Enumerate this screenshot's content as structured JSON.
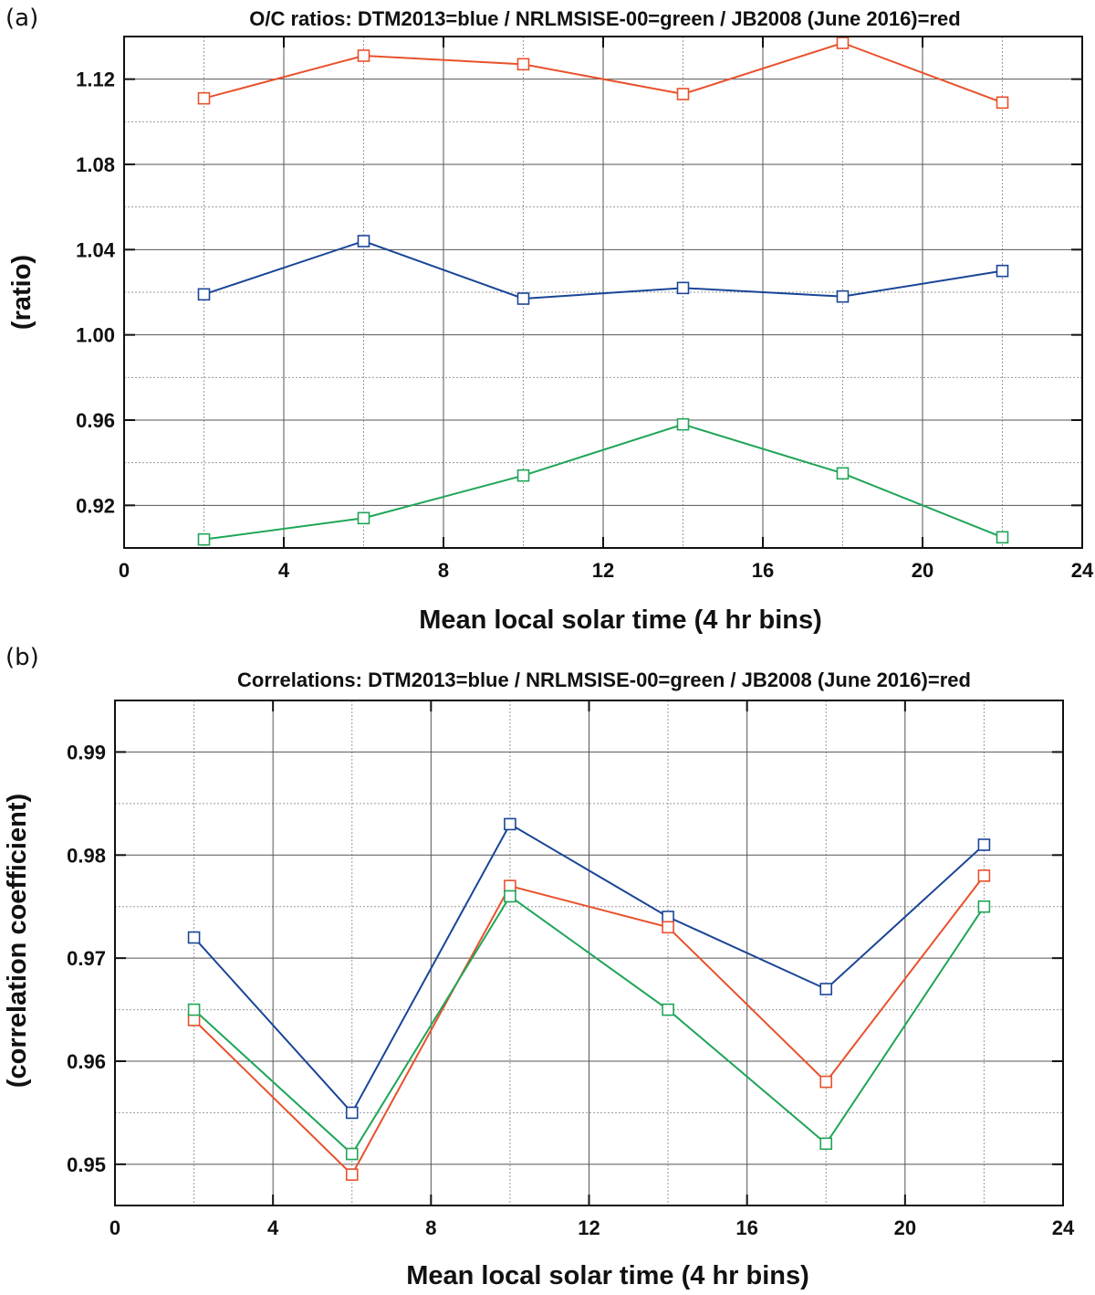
{
  "chart_data": [
    {
      "type": "line",
      "panel": "(a)",
      "title": "O/C ratios: DTM2013=blue / NRLMSISE-00=green / JB2008 (June 2016)=red",
      "xlabel": "Mean local solar time (4 hr bins)",
      "ylabel": "(ratio)",
      "xlim": [
        0,
        24
      ],
      "ylim": [
        0.9,
        1.14
      ],
      "xticks": [
        "0",
        "4",
        "8",
        "12",
        "16",
        "20",
        "24"
      ],
      "yticks": [
        "0.92",
        "0.96",
        "1.00",
        "1.04",
        "1.08",
        "1.12"
      ],
      "grid": true,
      "x": [
        2,
        6,
        10,
        14,
        18,
        22
      ],
      "series": [
        {
          "key": "red",
          "color": "#e8512c",
          "values": [
            1.111,
            1.131,
            1.127,
            1.113,
            1.137,
            1.109
          ]
        },
        {
          "key": "blue",
          "color": "#1a4597",
          "values": [
            1.019,
            1.044,
            1.017,
            1.022,
            1.018,
            1.03
          ]
        },
        {
          "key": "green",
          "color": "#1fa557",
          "values": [
            0.904,
            0.914,
            0.934,
            0.958,
            0.935,
            0.905
          ]
        }
      ]
    },
    {
      "type": "line",
      "panel": "(b)",
      "title": "Correlations: DTM2013=blue / NRLMSISE-00=green / JB2008 (June 2016)=red",
      "xlabel": "Mean local solar time (4 hr bins)",
      "ylabel": "(correlation coefficient)",
      "xlim": [
        0,
        24
      ],
      "ylim": [
        0.946,
        0.995
      ],
      "xticks": [
        "0",
        "4",
        "8",
        "12",
        "16",
        "20",
        "24"
      ],
      "yticks": [
        "0.95",
        "0.96",
        "0.97",
        "0.98",
        "0.99"
      ],
      "grid": true,
      "x": [
        2,
        6,
        10,
        14,
        18,
        22
      ],
      "series": [
        {
          "key": "blue",
          "color": "#1a4597",
          "values": [
            0.972,
            0.955,
            0.983,
            0.974,
            0.967,
            0.981
          ]
        },
        {
          "key": "red",
          "color": "#e8512c",
          "values": [
            0.964,
            0.949,
            0.977,
            0.973,
            0.958,
            0.978
          ]
        },
        {
          "key": "green",
          "color": "#1fa557",
          "values": [
            0.965,
            0.951,
            0.976,
            0.965,
            0.952,
            0.975
          ]
        }
      ]
    }
  ]
}
